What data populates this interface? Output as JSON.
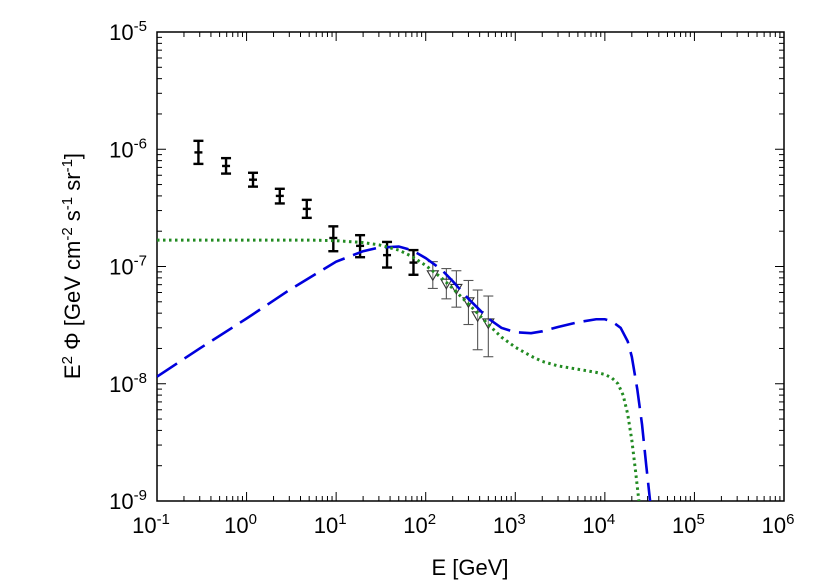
{
  "chart_data": {
    "type": "scatter",
    "title": "",
    "xlabel": "E [GeV]",
    "ylabel": "E² Φ [GeV cm⁻² s⁻¹ sr⁻¹]",
    "xscale": "log",
    "yscale": "log",
    "xlim": [
      0.1,
      1000000
    ],
    "ylim": [
      1e-09,
      1e-05
    ],
    "grid": false,
    "legend": "none",
    "x_ticks": [
      {
        "value": 0.1,
        "base": "10",
        "exp": "-1"
      },
      {
        "value": 1,
        "base": "10",
        "exp": "0"
      },
      {
        "value": 10,
        "base": "10",
        "exp": "1"
      },
      {
        "value": 100,
        "base": "10",
        "exp": "2"
      },
      {
        "value": 1000,
        "base": "10",
        "exp": "3"
      },
      {
        "value": 10000,
        "base": "10",
        "exp": "4"
      },
      {
        "value": 100000,
        "base": "10",
        "exp": "5"
      },
      {
        "value": 1000000,
        "base": "10",
        "exp": "6"
      }
    ],
    "y_ticks": [
      {
        "value": 1e-09,
        "base": "10",
        "exp": "-9"
      },
      {
        "value": 1e-08,
        "base": "10",
        "exp": "-8"
      },
      {
        "value": 1e-07,
        "base": "10",
        "exp": "-7"
      },
      {
        "value": 1e-06,
        "base": "10",
        "exp": "-6"
      },
      {
        "value": 1e-05,
        "base": "10",
        "exp": "-5"
      }
    ],
    "series": [
      {
        "kind": "errorbar",
        "marker": "cross",
        "color": "#000000",
        "points": [
          {
            "x": 0.29,
            "y": 9.4e-07,
            "ylo": 7.5e-07,
            "yhi": 1.18e-06
          },
          {
            "x": 0.59,
            "y": 7.2e-07,
            "ylo": 6.2e-07,
            "yhi": 8.4e-07
          },
          {
            "x": 1.18,
            "y": 5.5e-07,
            "ylo": 4.8e-07,
            "yhi": 6.3e-07
          },
          {
            "x": 2.35,
            "y": 4e-07,
            "ylo": 3.45e-07,
            "yhi": 4.6e-07
          },
          {
            "x": 4.7,
            "y": 3.1e-07,
            "ylo": 2.6e-07,
            "yhi": 3.7e-07
          },
          {
            "x": 9.3,
            "y": 1.75e-07,
            "ylo": 1.35e-07,
            "yhi": 2.2e-07
          },
          {
            "x": 18.5,
            "y": 1.5e-07,
            "ylo": 1.2e-07,
            "yhi": 1.85e-07
          },
          {
            "x": 37,
            "y": 1.25e-07,
            "ylo": 9.8e-08,
            "yhi": 1.62e-07
          },
          {
            "x": 73,
            "y": 1.08e-07,
            "ylo": 8.5e-08,
            "yhi": 1.38e-07
          }
        ]
      },
      {
        "kind": "errorbar",
        "marker": "triangle-down-open",
        "color": "#000000",
        "points": [
          {
            "x": 120,
            "y": 8.5e-08,
            "ylo": 6.5e-08,
            "yhi": 1.1e-07
          },
          {
            "x": 170,
            "y": 7.2e-08,
            "ylo": 5.3e-08,
            "yhi": 9.6e-08
          },
          {
            "x": 220,
            "y": 6.5e-08,
            "ylo": 4.5e-08,
            "yhi": 9.2e-08
          },
          {
            "x": 300,
            "y": 5e-08,
            "ylo": 3.2e-08,
            "yhi": 7.6e-08
          },
          {
            "x": 380,
            "y": 3.8e-08,
            "ylo": 1.95e-08,
            "yhi": 6.3e-08
          },
          {
            "x": 500,
            "y": 3.3e-08,
            "ylo": 1.7e-08,
            "yhi": 5.6e-08
          }
        ]
      },
      {
        "kind": "line",
        "style": "dashed",
        "color": "#0000dd",
        "points": [
          [
            0.1,
            1.15e-08
          ],
          [
            0.3,
            2e-08
          ],
          [
            1,
            3.6e-08
          ],
          [
            3,
            6.3e-08
          ],
          [
            10,
            1.1e-07
          ],
          [
            20,
            1.35e-07
          ],
          [
            30,
            1.45e-07
          ],
          [
            50,
            1.48e-07
          ],
          [
            70,
            1.38e-07
          ],
          [
            100,
            1.18e-07
          ],
          [
            150,
            9.4e-08
          ],
          [
            200,
            7.5e-08
          ],
          [
            300,
            5.3e-08
          ],
          [
            500,
            3.6e-08
          ],
          [
            700,
            3e-08
          ],
          [
            1000,
            2.75e-08
          ],
          [
            1500,
            2.7e-08
          ],
          [
            2000,
            2.8e-08
          ],
          [
            3000,
            3.05e-08
          ],
          [
            5000,
            3.35e-08
          ],
          [
            8000,
            3.55e-08
          ],
          [
            10000,
            3.55e-08
          ],
          [
            12000,
            3.4e-08
          ],
          [
            15000,
            3e-08
          ],
          [
            18000,
            2.3e-08
          ],
          [
            20000,
            1.7e-08
          ],
          [
            23000,
            9e-09
          ],
          [
            26000,
            4.5e-09
          ],
          [
            29000,
            2e-09
          ],
          [
            32000,
            1e-09
          ]
        ]
      },
      {
        "kind": "line",
        "style": "dotted",
        "color": "#228b22",
        "points": [
          [
            0.1,
            1.68e-07
          ],
          [
            1,
            1.68e-07
          ],
          [
            5,
            1.68e-07
          ],
          [
            10,
            1.66e-07
          ],
          [
            20,
            1.6e-07
          ],
          [
            30,
            1.53e-07
          ],
          [
            50,
            1.38e-07
          ],
          [
            70,
            1.22e-07
          ],
          [
            100,
            1.02e-07
          ],
          [
            150,
            8e-08
          ],
          [
            200,
            6.5e-08
          ],
          [
            300,
            4.8e-08
          ],
          [
            500,
            3.2e-08
          ],
          [
            700,
            2.5e-08
          ],
          [
            1000,
            2.05e-08
          ],
          [
            1500,
            1.72e-08
          ],
          [
            2000,
            1.55e-08
          ],
          [
            3000,
            1.42e-08
          ],
          [
            5000,
            1.33e-08
          ],
          [
            8000,
            1.25e-08
          ],
          [
            10000,
            1.2e-08
          ],
          [
            12000,
            1.12e-08
          ],
          [
            14000,
            1e-08
          ],
          [
            16000,
            8e-09
          ],
          [
            18000,
            5.5e-09
          ],
          [
            20000,
            3.3e-09
          ],
          [
            22000,
            1.8e-09
          ],
          [
            24000,
            1e-09
          ]
        ]
      }
    ]
  }
}
